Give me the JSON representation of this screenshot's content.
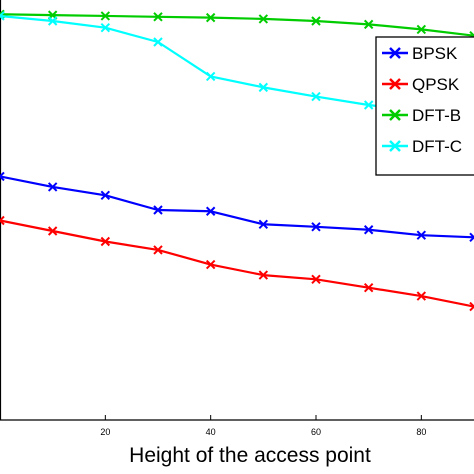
{
  "chart_data": {
    "type": "line",
    "xlabel": "Height of the access point",
    "ylabel": "",
    "title": "",
    "xlim": [
      0,
      90
    ],
    "ylim": [
      0,
      1
    ],
    "x_ticks": [
      20,
      40,
      60,
      80
    ],
    "legend_position": "top-right",
    "grid": false,
    "series": [
      {
        "name": "BPSK",
        "color": "#0000ff",
        "marker": "x",
        "x": [
          0,
          10,
          20,
          30,
          40,
          50,
          60,
          70,
          80,
          90
        ],
        "values": [
          0.58,
          0.555,
          0.535,
          0.5,
          0.497,
          0.466,
          0.46,
          0.453,
          0.44,
          0.435
        ]
      },
      {
        "name": "QPSK",
        "color": "#ff0000",
        "marker": "x",
        "x": [
          0,
          10,
          20,
          30,
          40,
          50,
          60,
          70,
          80,
          90
        ],
        "values": [
          0.475,
          0.45,
          0.425,
          0.405,
          0.37,
          0.345,
          0.335,
          0.315,
          0.295,
          0.27
        ]
      },
      {
        "name": "DFT-B",
        "color": "#00cc00",
        "marker": "x",
        "x": [
          0,
          10,
          20,
          30,
          40,
          50,
          60,
          70,
          80,
          90
        ],
        "values": [
          0.966,
          0.964,
          0.962,
          0.96,
          0.958,
          0.955,
          0.95,
          0.942,
          0.93,
          0.915
        ]
      },
      {
        "name": "DFT-C",
        "color": "#00ffff",
        "marker": "x",
        "x": [
          0,
          10,
          20,
          30,
          40,
          50,
          60,
          70,
          80,
          90
        ],
        "values": [
          0.962,
          0.95,
          0.934,
          0.9,
          0.818,
          0.792,
          0.77,
          0.75,
          0.735,
          0.715
        ]
      }
    ]
  }
}
